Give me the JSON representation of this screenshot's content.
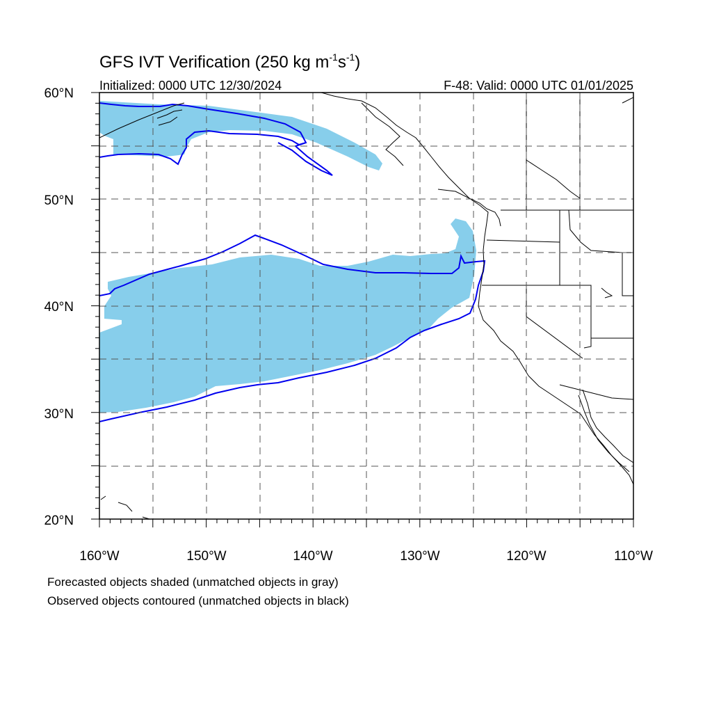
{
  "title_main": "GFS IVT Verification (250 kg m",
  "title_sup1": "-1",
  "title_mid": "s",
  "title_sup2": "-1",
  "title_end": ")",
  "initialized": "Initialized: 0000 UTC 12/30/2024",
  "valid": "F-48: Valid: 0000 UTC 01/01/2025",
  "lat_labels": [
    "60°N",
    "50°N",
    "40°N",
    "30°N",
    "20°N"
  ],
  "lon_labels": [
    "160°W",
    "150°W",
    "140°W",
    "130°W",
    "120°W",
    "110°W"
  ],
  "footnote_1": "Forecasted objects shaded (unmatched objects in gray)",
  "footnote_2": "Observed objects contoured (unmatched objects in black)",
  "colors": {
    "forecast_fill": "#87ceeb",
    "observed_contour": "#0000ee",
    "coastline": "#000000",
    "grid": "#555555"
  },
  "map": {
    "lon_range": [
      -160,
      -110
    ],
    "lat_range": [
      20,
      60
    ],
    "grid_lon": [
      -155,
      -150,
      -145,
      -140,
      -135,
      -130,
      -125,
      -120,
      -115
    ],
    "grid_lat": [
      25,
      30,
      35,
      40,
      45,
      50,
      55
    ]
  }
}
